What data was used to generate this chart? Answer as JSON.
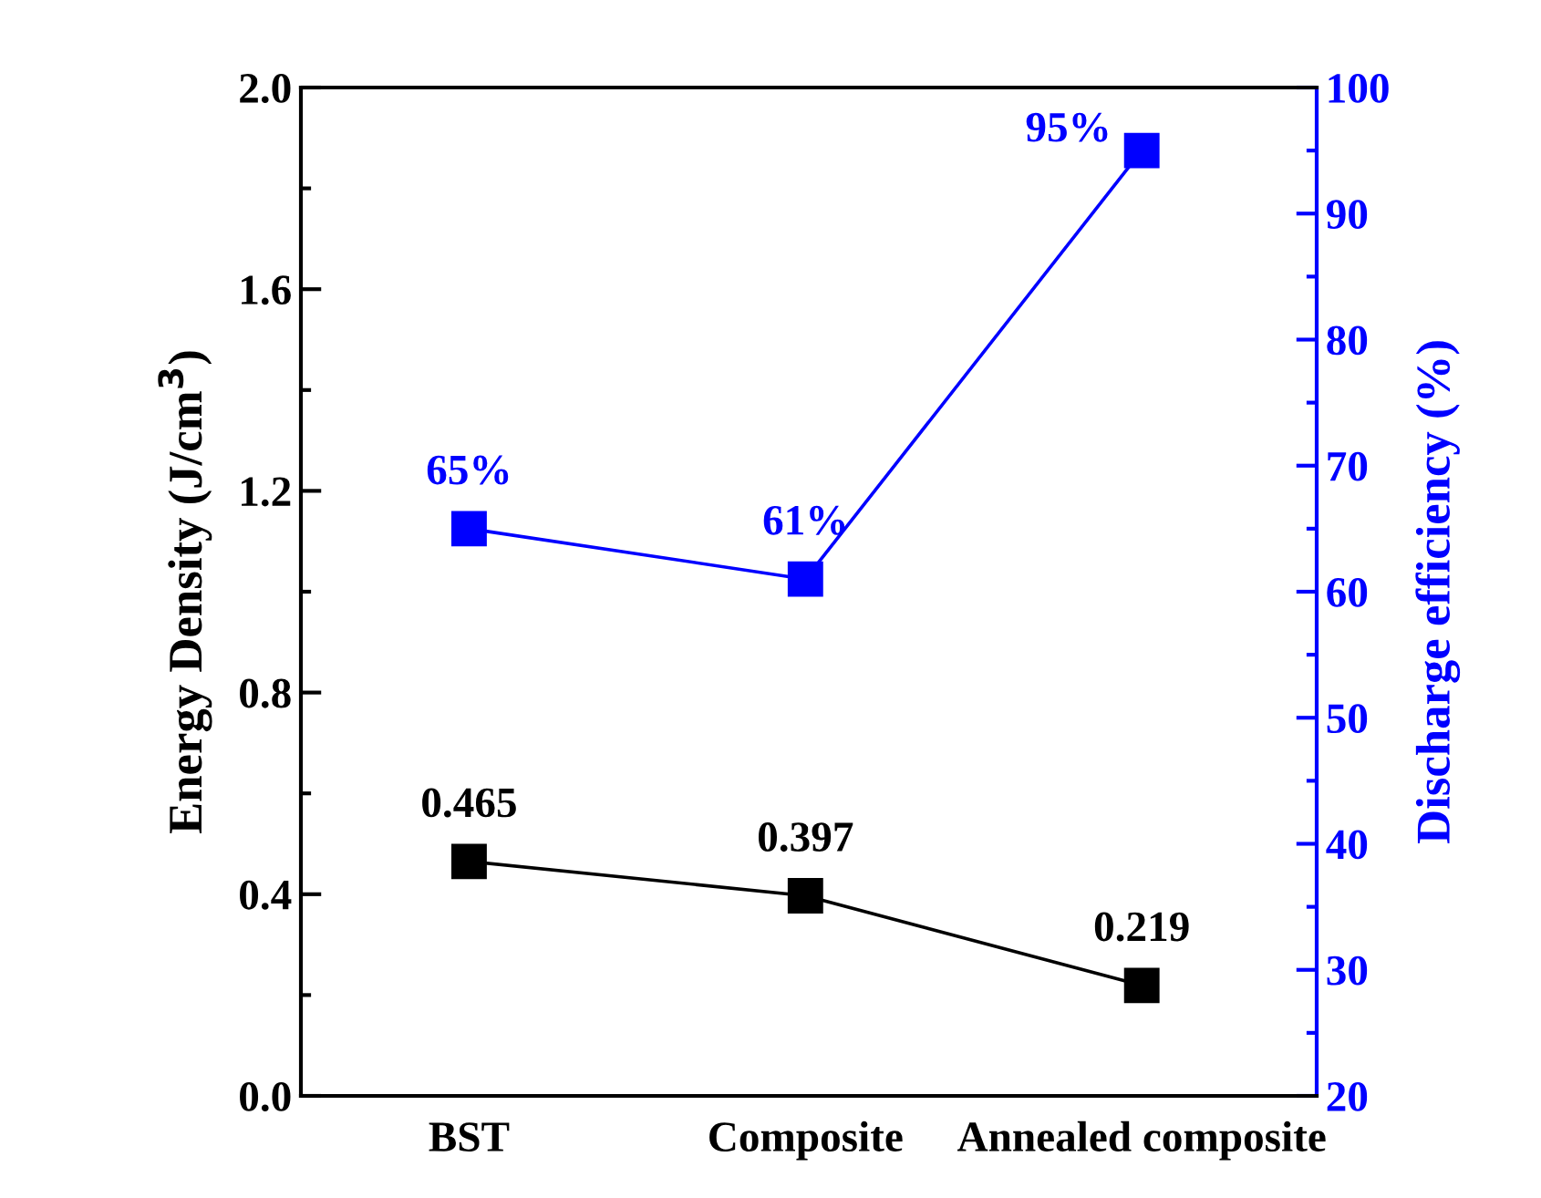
{
  "chart_data": {
    "type": "line",
    "ylabel": "Energy Density (J/cm$^{3}$)",
    "y2label": "Discharge efficiency (%)",
    "categories": [
      "BST",
      "Composite",
      "Annealed composite"
    ],
    "series": [
      {
        "color": "#000000",
        "values": [
          0.465,
          0.397,
          0.219
        ],
        "value_labels": [
          "0.465",
          "0.397",
          "0.219"
        ]
      },
      {
        "color": "#0000ff",
        "axis": "y2",
        "values": [
          65,
          61,
          95
        ],
        "value_labels": [
          "65%",
          "61%",
          "95%"
        ]
      }
    ],
    "ylim": [
      0,
      2.0
    ],
    "yticks": [
      {
        "value": 0,
        "label": "0.0"
      },
      0.4,
      0.8,
      1.2,
      1.6,
      {
        "value": 2,
        "label": "2.0"
      }
    ],
    "y2lim": [
      20,
      100
    ],
    "y2ticks": [
      20,
      30,
      40,
      50,
      60,
      70,
      80,
      90,
      100
    ],
    "marker": "square",
    "line_style": "solid",
    "grid": false,
    "legend": false
  }
}
